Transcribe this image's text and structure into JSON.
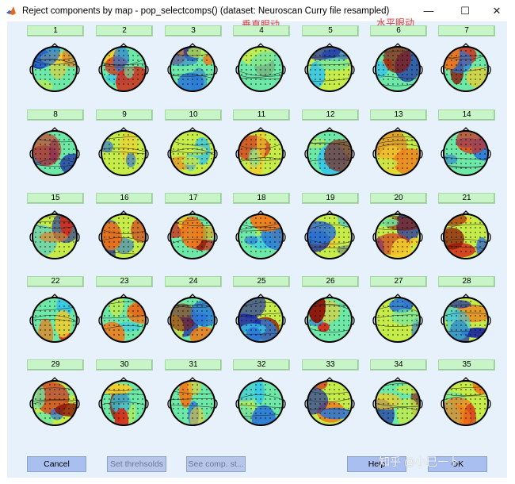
{
  "window": {
    "title": "Reject components by map - pop_selectcomps() (dataset: Neuroscan Curry file resampled)",
    "controls": {
      "minimize": "—",
      "maximize": "☐",
      "close": "✕"
    }
  },
  "annotations": {
    "vertical_eye_movement": "垂直眼动",
    "horizontal_eye_movement": "水平眼动"
  },
  "components": [
    "1",
    "2",
    "3",
    "4",
    "5",
    "6",
    "7",
    "8",
    "9",
    "10",
    "11",
    "12",
    "13",
    "14",
    "15",
    "16",
    "17",
    "18",
    "19",
    "20",
    "21",
    "22",
    "23",
    "24",
    "25",
    "26",
    "27",
    "28",
    "29",
    "30",
    "31",
    "32",
    "33",
    "34",
    "35"
  ],
  "buttons": {
    "cancel": "Cancel",
    "set_thresholds": "Set threhsolds",
    "see_comp_stats": "See comp. st...",
    "help": "Help",
    "ok": "OK"
  },
  "watermark": "知乎 @小巳一卜",
  "colors": {
    "client_bg": "#e6f1fb",
    "number_button": "#c8f5c8",
    "annotation": "#d83a3a",
    "bottom_button": "#a9bff0"
  }
}
